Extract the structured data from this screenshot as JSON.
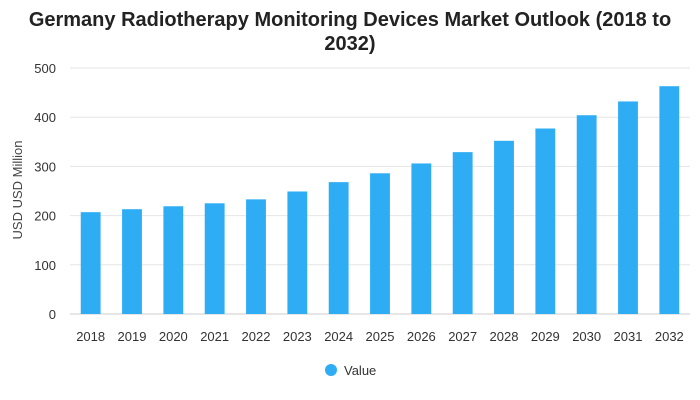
{
  "chart_data": {
    "type": "bar",
    "title": "Germany Radiotherapy Monitoring Devices Market Outlook (2018 to 2032)",
    "xlabel": "",
    "ylabel": "USD USD Million",
    "categories": [
      "2018",
      "2019",
      "2020",
      "2021",
      "2022",
      "2023",
      "2024",
      "2025",
      "2026",
      "2027",
      "2028",
      "2029",
      "2030",
      "2031",
      "2032"
    ],
    "series": [
      {
        "name": "Value",
        "color": "#2eadf5",
        "values": [
          207,
          213,
          219,
          225,
          233,
          249,
          268,
          286,
          306,
          329,
          352,
          377,
          404,
          432,
          463
        ]
      }
    ],
    "ylim": [
      0,
      500
    ],
    "yticks": [
      0,
      100,
      200,
      300,
      400,
      500
    ],
    "grid": true,
    "legend": "bottom-center"
  }
}
